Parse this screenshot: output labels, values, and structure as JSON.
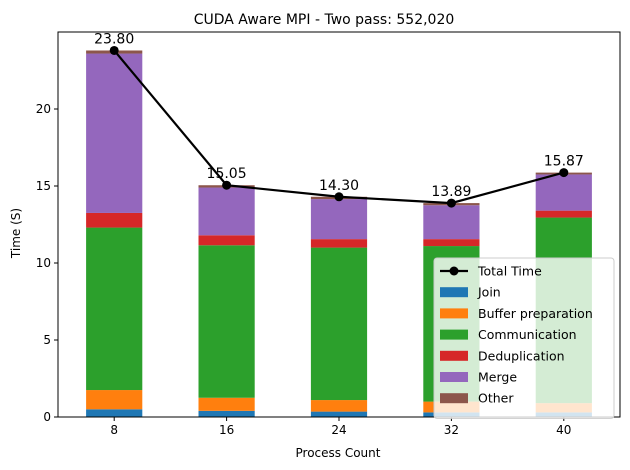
{
  "chart_data": {
    "type": "bar",
    "stacked": true,
    "title": "CUDA Aware MPI - Two pass: 552,020",
    "xlabel": "Process Count",
    "ylabel": "Time (S)",
    "categories": [
      "8",
      "16",
      "24",
      "32",
      "40"
    ],
    "ylim": [
      0,
      25
    ],
    "yticks": [
      0,
      5,
      10,
      15,
      20
    ],
    "series": [
      {
        "name": "Join",
        "color": "#1f77b4",
        "values": [
          0.5,
          0.4,
          0.35,
          0.3,
          0.3
        ]
      },
      {
        "name": "Buffer preparation",
        "color": "#ff7f0e",
        "values": [
          1.25,
          0.85,
          0.75,
          0.7,
          0.6
        ]
      },
      {
        "name": "Communication",
        "color": "#2ca02c",
        "values": [
          10.55,
          9.9,
          9.9,
          10.1,
          12.05
        ]
      },
      {
        "name": "Deduplication",
        "color": "#d62728",
        "values": [
          0.95,
          0.65,
          0.55,
          0.45,
          0.45
        ]
      },
      {
        "name": "Merge",
        "color": "#9467bd",
        "values": [
          10.35,
          3.1,
          2.6,
          2.2,
          2.35
        ]
      },
      {
        "name": "Other",
        "color": "#8c564b",
        "values": [
          0.2,
          0.15,
          0.15,
          0.14,
          0.12
        ]
      }
    ],
    "line": {
      "name": "Total Time",
      "color": "#000000",
      "values": [
        23.8,
        15.05,
        14.3,
        13.89,
        15.87
      ],
      "labels": [
        "23.80",
        "15.05",
        "14.30",
        "13.89",
        "15.87"
      ]
    },
    "legend": {
      "position": "bottom-right",
      "entries": [
        "Total Time",
        "Join",
        "Buffer preparation",
        "Communication",
        "Deduplication",
        "Merge",
        "Other"
      ]
    },
    "grid": false
  }
}
